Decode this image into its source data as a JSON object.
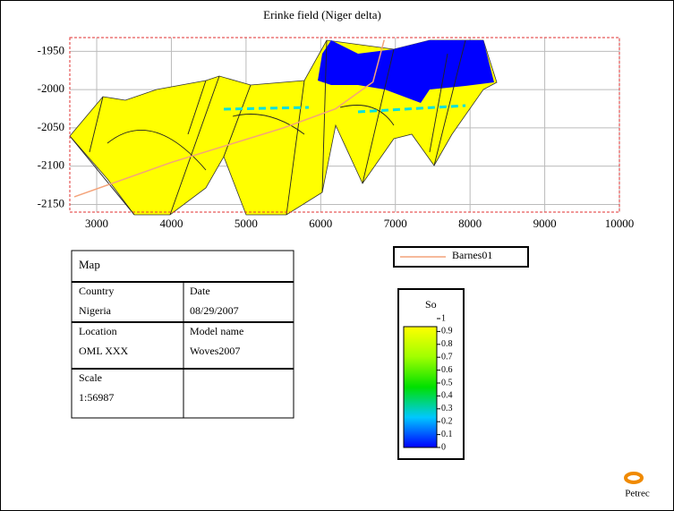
{
  "chart_data": {
    "type": "line",
    "title": "Erinke field (Niger delta)",
    "xlim": [
      2640,
      10000
    ],
    "xticks": [
      3000,
      4000,
      5000,
      6000,
      7000,
      8000,
      9000,
      10000
    ],
    "ylim": [
      -2160,
      -1932
    ],
    "yticks": [
      -1950,
      -2000,
      -2050,
      -2100,
      -2150
    ],
    "grid": true,
    "series": [
      {
        "name": "Barnes01",
        "color": "#f4a37a",
        "x": [
          2700,
          4000,
          5500,
          6200,
          6700,
          6850
        ],
        "values": [
          -2140,
          -2095,
          -2050,
          -2025,
          -1990,
          -1935
        ]
      }
    ],
    "colorbar": {
      "title": "So",
      "ticks": [
        1,
        0.9,
        0.8,
        0.7,
        0.6,
        0.5,
        0.4,
        0.3,
        0.2,
        0.1,
        0
      ]
    }
  },
  "map_table": {
    "title": "Map",
    "rows": [
      [
        [
          "Country",
          "Nigeria"
        ],
        [
          "Date",
          "08/29/2007"
        ]
      ],
      [
        [
          "Location",
          "OML XXX"
        ],
        [
          "Model name",
          "Woves2007"
        ]
      ],
      [
        [
          "Scale",
          "1:56987"
        ],
        []
      ]
    ]
  },
  "logo_text": "Petrec"
}
